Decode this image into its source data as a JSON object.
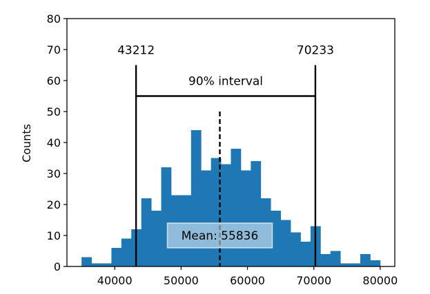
{
  "chart_data": {
    "type": "bar",
    "subtype": "histogram",
    "bin_edges": [
      35000,
      36500,
      38000,
      39500,
      41000,
      42500,
      44000,
      45500,
      47000,
      48500,
      50000,
      51500,
      53000,
      54500,
      56000,
      57500,
      59000,
      60500,
      62000,
      63500,
      65000,
      66500,
      68000,
      69500,
      71000,
      72500,
      74000,
      75500,
      77000,
      78500,
      80000
    ],
    "counts": [
      3,
      1,
      1,
      6,
      9,
      12,
      22,
      18,
      32,
      23,
      23,
      44,
      31,
      35,
      33,
      38,
      31,
      34,
      22,
      18,
      15,
      11,
      8,
      13,
      4,
      5,
      1,
      1,
      4,
      2
    ],
    "bar_color": "#1f77b4",
    "xlim": [
      32800,
      82200
    ],
    "ylim": [
      0,
      80
    ],
    "xticks": [
      40000,
      50000,
      60000,
      70000,
      80000
    ],
    "xtick_labels": [
      "40000",
      "50000",
      "60000",
      "70000",
      "80000"
    ],
    "yticks": [
      0,
      10,
      20,
      30,
      40,
      50,
      60,
      70,
      80
    ],
    "ytick_labels": [
      "0",
      "10",
      "20",
      "30",
      "40",
      "50",
      "60",
      "70",
      "80"
    ],
    "xlabel": "",
    "ylabel": "Counts",
    "interval": {
      "low": 43212,
      "high": 70233,
      "low_label": "43212",
      "high_label": "70233",
      "label": "90% interval",
      "line_top": 65,
      "bracket_y": 55
    },
    "mean": {
      "value": 55836,
      "label": "Mean: 55836",
      "line_top": 50
    },
    "grid": false
  }
}
